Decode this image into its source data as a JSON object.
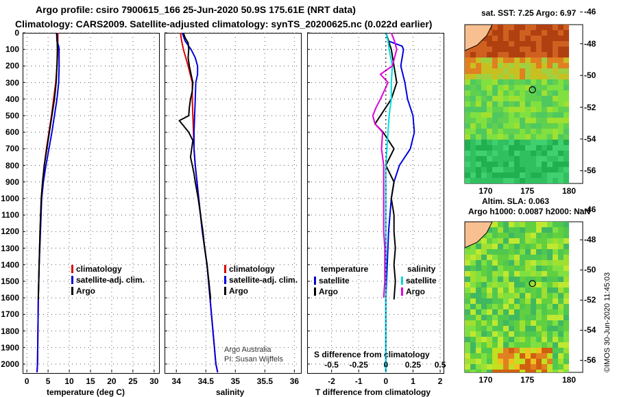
{
  "header": {
    "line1": "Argo profile: csiro 7900615_166 25-Jun-2020 50.9S 175.61E (NRT data)",
    "line2": "Climatology: CARS2009. Satellite-adjusted climatology: synTS_20200625.nc (0.022d earlier)"
  },
  "colors": {
    "climatology": "#dd0000",
    "satellite": "#0000dd",
    "argo": "#000000",
    "sat_salinity": "#00dddd",
    "argo_salinity": "#dd00dd"
  },
  "depth_ticks": [
    "0",
    "100",
    "200",
    "300",
    "400",
    "500",
    "600",
    "700",
    "800",
    "900",
    "1000",
    "1100",
    "1200",
    "1300",
    "1400",
    "1500",
    "1600",
    "1700",
    "1800",
    "1900",
    "2000"
  ],
  "chart_data": [
    {
      "type": "line",
      "xlabel": "temperature (deg C)",
      "ylabel": "depth",
      "xlim": [
        -1,
        31
      ],
      "ylim": [
        2050,
        0
      ],
      "xticks": [
        "0",
        "5",
        "10",
        "15",
        "20",
        "25",
        "30"
      ],
      "legend": [
        "climatology",
        "satellite-adj. clim.",
        "Argo"
      ],
      "series": [
        {
          "name": "climatology",
          "depth": [
            0,
            100,
            200,
            300,
            400,
            500,
            600,
            700,
            800,
            900,
            1000,
            1200,
            1400,
            1600,
            1800,
            2000,
            2050
          ],
          "values": [
            7.3,
            7.3,
            7.1,
            6.8,
            6.3,
            5.8,
            5.2,
            4.6,
            4.1,
            3.7,
            3.4,
            3.1,
            2.9,
            2.7,
            2.6,
            2.5,
            2.4
          ]
        },
        {
          "name": "satellite-adj. clim.",
          "depth": [
            0,
            50,
            80,
            100,
            200,
            300,
            400,
            500,
            600,
            700,
            800,
            900,
            1000,
            1200,
            1400,
            1600,
            1800,
            2000,
            2050
          ],
          "values": [
            7.0,
            7.1,
            7.5,
            7.6,
            7.6,
            7.5,
            7.1,
            6.5,
            5.9,
            5.2,
            4.5,
            3.9,
            3.5,
            3.2,
            2.9,
            2.7,
            2.6,
            2.5,
            2.4
          ]
        },
        {
          "name": "Argo",
          "depth": [
            0,
            100,
            200,
            300,
            400,
            500,
            550,
            600,
            700,
            800,
            900,
            1000,
            1200,
            1400,
            1600,
            1610
          ],
          "values": [
            7.1,
            7.2,
            7.1,
            6.9,
            6.5,
            5.9,
            5.6,
            5.3,
            4.7,
            4.1,
            3.7,
            3.4,
            3.1,
            2.9,
            2.7,
            2.7
          ]
        }
      ]
    },
    {
      "type": "line",
      "xlabel": "salinity",
      "ylabel": "depth",
      "xlim": [
        33.8,
        36.1
      ],
      "ylim": [
        2050,
        0
      ],
      "xticks": [
        "34",
        "34.5",
        "35",
        "35.5",
        "36"
      ],
      "legend": [
        "climatology",
        "satellite-adj. clim.",
        "Argo"
      ],
      "series": [
        {
          "name": "climatology",
          "depth": [
            0,
            50,
            100,
            150,
            200,
            300,
            400,
            500,
            600,
            700,
            800,
            1000,
            1200,
            1400,
            1600,
            1800,
            2000,
            2050
          ],
          "values": [
            34.07,
            34.09,
            34.12,
            34.16,
            34.2,
            34.27,
            34.27,
            34.28,
            34.29,
            34.3,
            34.32,
            34.38,
            34.44,
            34.52,
            34.57,
            34.62,
            34.67,
            34.7
          ]
        },
        {
          "name": "satellite-adj. clim.",
          "depth": [
            0,
            50,
            100,
            150,
            200,
            250,
            300,
            400,
            500,
            600,
            700,
            800,
            1000,
            1200,
            1400,
            1600,
            1800,
            2000,
            2050
          ],
          "values": [
            34.1,
            34.15,
            34.25,
            34.32,
            34.36,
            34.36,
            34.33,
            34.32,
            34.31,
            34.3,
            34.3,
            34.32,
            34.38,
            34.44,
            34.52,
            34.57,
            34.62,
            34.67,
            34.7
          ]
        },
        {
          "name": "Argo",
          "depth": [
            0,
            30,
            60,
            100,
            150,
            200,
            250,
            300,
            350,
            400,
            450,
            500,
            530,
            560,
            600,
            650,
            700,
            750,
            800,
            850,
            900,
            1000,
            1100,
            1200,
            1300,
            1400,
            1500,
            1600,
            1610
          ],
          "values": [
            34.12,
            34.15,
            34.2,
            34.21,
            34.2,
            34.22,
            34.25,
            34.28,
            34.27,
            34.24,
            34.22,
            34.21,
            34.05,
            34.12,
            34.21,
            34.28,
            34.26,
            34.24,
            34.27,
            34.3,
            34.32,
            34.37,
            34.41,
            34.45,
            34.48,
            34.52,
            34.55,
            34.58,
            34.58
          ]
        }
      ]
    },
    {
      "type": "line",
      "xlabel": "T difference from climatology",
      "top_xlabel": "S difference from climatology",
      "ylabel": "depth",
      "xlim": [
        -2.9,
        2.1
      ],
      "ylim": [
        2050,
        0
      ],
      "xticks": [
        "-2",
        "-1",
        "0",
        "1",
        "2"
      ],
      "top_xticks": [
        "-0.5",
        "-0.25",
        "0",
        "0.25",
        "0.5"
      ],
      "legend_left_title": "temperature",
      "legend_right_title": "salinity",
      "legend": [
        "satellite",
        "Argo",
        "satellite",
        "Argo"
      ],
      "series": [
        {
          "name": "temperature satellite",
          "depth": [
            0,
            50,
            80,
            100,
            150,
            200,
            300,
            400,
            500,
            600,
            700,
            800,
            900,
            1000,
            1200,
            1400,
            1600,
            1800,
            2000,
            2050
          ],
          "values": [
            0.0,
            0.1,
            0.6,
            0.65,
            0.6,
            0.55,
            0.7,
            0.8,
            1.0,
            1.05,
            0.9,
            0.5,
            0.3,
            0.2,
            0.1,
            0.05,
            0.0,
            0.0,
            0.0,
            0.0
          ]
        },
        {
          "name": "temperature Argo",
          "depth": [
            0,
            100,
            200,
            300,
            400,
            500,
            550,
            600,
            700,
            800,
            900,
            1000,
            1100,
            1200,
            1300,
            1400,
            1500,
            1610
          ],
          "values": [
            0.0,
            0.2,
            0.3,
            0.4,
            0.2,
            -0.2,
            -0.4,
            -0.1,
            0.3,
            0.0,
            0.3,
            0.2,
            0.3,
            0.3,
            0.35,
            0.3,
            0.35,
            0.3
          ]
        },
        {
          "name": "salinity satellite",
          "depth": [
            0,
            50,
            100,
            200,
            300,
            400,
            500,
            600,
            700,
            800,
            1000,
            1200,
            1400,
            1600,
            1800,
            2000,
            2050
          ],
          "values": [
            0.0,
            0.02,
            0.03,
            0.06,
            0.05,
            0.05,
            0.03,
            0.02,
            0.01,
            0.0,
            0.0,
            0.0,
            0.0,
            0.0,
            0.0,
            0.0,
            0.0
          ]
        },
        {
          "name": "salinity Argo",
          "depth": [
            0,
            50,
            100,
            150,
            200,
            250,
            300,
            400,
            450,
            500,
            550,
            600,
            700,
            800,
            900,
            1000,
            1100,
            1200,
            1300,
            1400,
            1500,
            1600
          ],
          "values": [
            0.05,
            0.08,
            0.1,
            0.08,
            0.06,
            -0.05,
            0.02,
            -0.05,
            -0.09,
            -0.12,
            -0.1,
            -0.03,
            -0.04,
            -0.02,
            -0.02,
            -0.02,
            -0.02,
            -0.02,
            -0.01,
            -0.01,
            -0.01,
            -0.02
          ]
        }
      ]
    }
  ],
  "legend_labels": {
    "climatology": "climatology",
    "satellite_adj": "satellite-adj. clim.",
    "argo": "Argo",
    "temperature": "temperature",
    "salinity": "salinity",
    "satellite": "satellite"
  },
  "credit": {
    "line1": "Argo Australia",
    "line2": "PI: Susan Wijffels"
  },
  "maps": {
    "sst_title": "sat. SST: 7.25 Argo: 6.97",
    "sla_title1": "Altim. SLA: 0.063",
    "sla_title2": "Argo h1000: 0.0087 h2000: NaN",
    "lat_ticks": [
      "-46",
      "-48",
      "-50",
      "-52",
      "-54",
      "-56"
    ],
    "lon_ticks": [
      "170",
      "175",
      "180"
    ],
    "float_lon": 175.61,
    "float_lat": -50.9
  },
  "footer_stamp": "©IMOS 30-Jun-2020 11:45:03"
}
